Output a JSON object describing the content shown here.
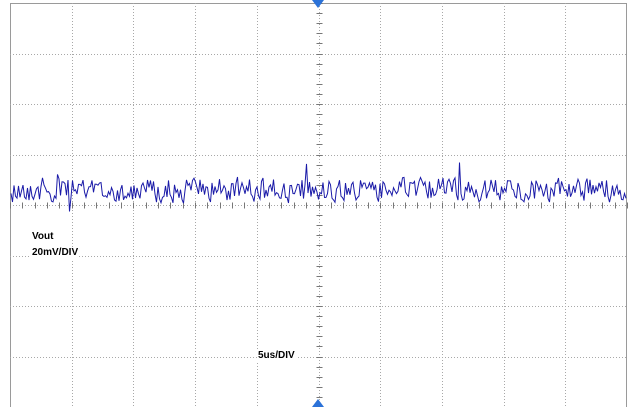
{
  "chart_data": {
    "type": "line",
    "title": "",
    "divisions": {
      "horizontal": 10,
      "vertical": 8
    },
    "channel": {
      "name": "Vout",
      "scale_label": "20mV/DIV",
      "scale_mV_per_div": 20,
      "color": "#1a1aa8"
    },
    "timebase": {
      "label": "5us/DIV",
      "us_per_div": 5
    },
    "x_range_us": [
      0,
      50
    ],
    "y_range_div": [
      -4,
      4
    ],
    "trace_offset_div": 0.3,
    "noise_peak_to_peak_mV": 12,
    "grid": true,
    "trigger_marker_color": "#2b72d8"
  }
}
